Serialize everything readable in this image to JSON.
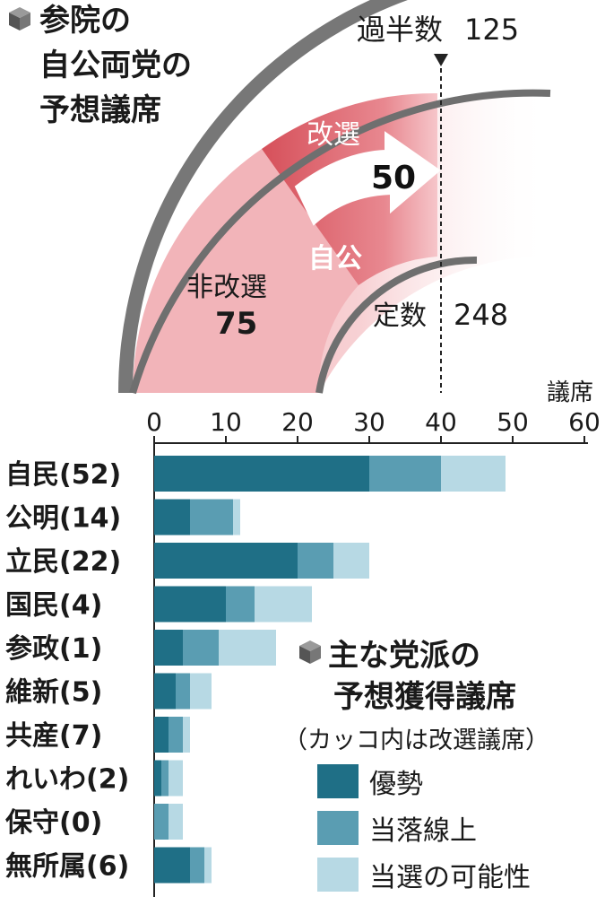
{
  "title_lines": [
    "参院の",
    "自公両党の",
    "予想議席"
  ],
  "majority": {
    "label": "過半数",
    "value": "125"
  },
  "total": {
    "label": "定数",
    "value": "248"
  },
  "non_election": {
    "label": "非改選",
    "value": "75"
  },
  "election": {
    "label": "改選",
    "value": "50"
  },
  "coalition_label": "自公",
  "colors": {
    "dark": "#1f6f86",
    "mid": "#5a9db2",
    "light": "#b7d9e4",
    "arc_outer": "#6f6f6f",
    "pink_light": "#f3b9bd",
    "pink_mid": "#e4848c",
    "pink_dark": "#d6505a"
  },
  "legend": {
    "title_lines": [
      "主な党派の",
      "予想獲得議席"
    ],
    "note": "（カッコ内は改選議席）",
    "items": [
      {
        "label": "優勢",
        "color": "#1f6f86"
      },
      {
        "label": "当落線上",
        "color": "#5a9db2"
      },
      {
        "label": "当選の可能性",
        "color": "#b7d9e4"
      }
    ]
  },
  "chart_data": {
    "type": "bar",
    "orientation": "horizontal",
    "stacked": true,
    "xlabel": "議席",
    "xlim": [
      0,
      60
    ],
    "xticks": [
      0,
      10,
      20,
      30,
      40,
      50,
      60
    ],
    "categories": [
      "自民",
      "公明",
      "立民",
      "国民",
      "参政",
      "維新",
      "共産",
      "れいわ",
      "保守",
      "無所属"
    ],
    "category_labels": [
      "自民(52)",
      "公明(14)",
      "立民(22)",
      "国民(4)",
      "参政(1)",
      "維新(5)",
      "共産(7)",
      "れいわ(2)",
      "保守(0)",
      "無所属(6)"
    ],
    "series": [
      {
        "name": "優勢",
        "values": [
          30,
          5,
          20,
          10,
          4,
          3,
          2,
          1,
          0,
          5
        ]
      },
      {
        "name": "当落線上",
        "values": [
          10,
          6,
          5,
          4,
          5,
          2,
          2,
          1,
          2,
          2
        ]
      },
      {
        "name": "当選の可能性",
        "values": [
          9,
          1,
          5,
          8,
          8,
          3,
          1,
          2,
          2,
          1
        ]
      }
    ]
  }
}
